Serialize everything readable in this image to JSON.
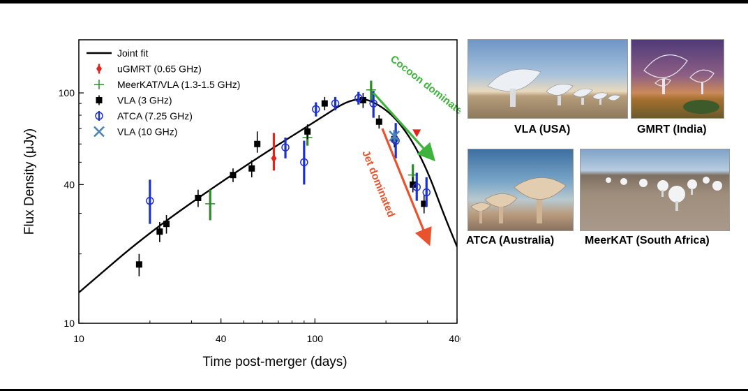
{
  "chart_data": {
    "type": "scatter",
    "xscale": "log",
    "yscale": "log",
    "xlim": [
      10,
      400
    ],
    "ylim": [
      10,
      170
    ],
    "xlabel": "Time post-merger (days)",
    "ylabel": "Flux Density (μJy)",
    "xticks": [
      10,
      40,
      100,
      400
    ],
    "yticks": [
      10,
      40,
      100
    ],
    "legend_position": "top-left",
    "fit": {
      "name": "Joint fit",
      "color": "#000000",
      "points": [
        [
          10,
          13.6
        ],
        [
          20,
          25
        ],
        [
          50,
          48
        ],
        [
          100,
          75
        ],
        [
          150,
          98
        ],
        [
          200,
          86
        ],
        [
          250,
          66
        ],
        [
          300,
          46
        ],
        [
          350,
          30
        ],
        [
          400,
          21.5
        ]
      ]
    },
    "series": [
      {
        "name": "uGMRT (0.65 GHz)",
        "color": "#e3241b",
        "marker": "diamond",
        "points": [
          [
            67,
            52,
            6,
            15
          ],
          [
            270,
            67,
            0,
            0
          ]
        ]
      },
      {
        "name": "MeerKAT/VLA (1.3-1.5 GHz)",
        "color": "#2c8a27",
        "marker": "plus",
        "points": [
          [
            36,
            33,
            5,
            5
          ],
          [
            93,
            64,
            5,
            7
          ],
          [
            173,
            103,
            10,
            10
          ],
          [
            260,
            44,
            5,
            5
          ]
        ]
      },
      {
        "name": "VLA (3 GHz)",
        "color": "#000000",
        "marker": "square",
        "points": [
          [
            18,
            18,
            2,
            2
          ],
          [
            22,
            25,
            2.5,
            2.5
          ],
          [
            23.5,
            27,
            2.5,
            2.5
          ],
          [
            32,
            35,
            3,
            3
          ],
          [
            45,
            44,
            3,
            3
          ],
          [
            54,
            47,
            4,
            4
          ],
          [
            57,
            60,
            5,
            8
          ],
          [
            93,
            68,
            5,
            5
          ],
          [
            110,
            90,
            6,
            6
          ],
          [
            160,
            93,
            7,
            7
          ],
          [
            187,
            75,
            5,
            5
          ],
          [
            217,
            63,
            5,
            5
          ],
          [
            260,
            40,
            3,
            3
          ],
          [
            290,
            33,
            3,
            3
          ]
        ]
      },
      {
        "name": "ATCA (7.25 GHz)",
        "color": "#1a2fd6",
        "marker": "circle-open",
        "points": [
          [
            20,
            34,
            7,
            8
          ],
          [
            75,
            58,
            6,
            6
          ],
          [
            90,
            50,
            10,
            12
          ],
          [
            101,
            85,
            6,
            6
          ],
          [
            122,
            90,
            6,
            6
          ],
          [
            153,
            95,
            6,
            6
          ],
          [
            177,
            90,
            12,
            12
          ],
          [
            220,
            62,
            10,
            12
          ],
          [
            270,
            39,
            5,
            6
          ],
          [
            297,
            37,
            5,
            6
          ]
        ]
      },
      {
        "name": "VLA (10 GHz)",
        "color": "#4a82b8",
        "marker": "x",
        "points": [
          [
            217,
            65,
            4,
            4
          ]
        ]
      }
    ],
    "annotations": [
      {
        "text": "Cocoon dominated",
        "color": "#3fb33c",
        "arrow_from": [
          177,
          100
        ],
        "arrow_to": [
          310,
          53
        ]
      },
      {
        "text": "Jet dominated",
        "color": "#e8532d",
        "arrow_from": [
          193,
          70
        ],
        "arrow_to": [
          300,
          23
        ]
      }
    ]
  },
  "photos": [
    {
      "caption": "VLA (USA)"
    },
    {
      "caption": "GMRT (India)"
    },
    {
      "caption": "ATCA (Australia)"
    },
    {
      "caption": "MeerKAT (South Africa)"
    }
  ]
}
